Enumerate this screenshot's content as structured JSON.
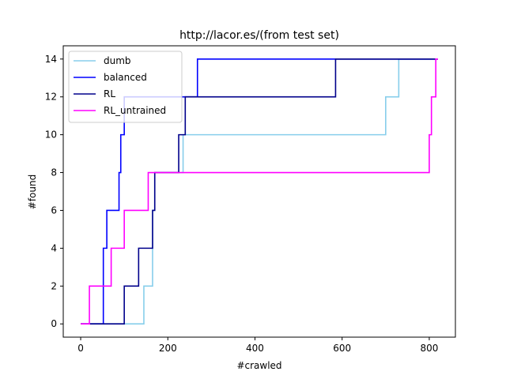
{
  "chart_data": {
    "type": "line",
    "title": "http://lacor.es/(from test set)",
    "xlabel": "#crawled",
    "ylabel": "#found",
    "xlim": [
      -40,
      860
    ],
    "ylim": [
      -0.7,
      14.7
    ],
    "xticks": [
      0,
      200,
      400,
      600,
      800
    ],
    "yticks": [
      0,
      2,
      4,
      6,
      8,
      10,
      12,
      14
    ],
    "grid": false,
    "legend_position": "top-left",
    "series": [
      {
        "name": "dumb",
        "color": "#87ceeb",
        "points": [
          [
            0,
            0
          ],
          [
            145,
            0
          ],
          [
            145,
            2
          ],
          [
            165,
            2
          ],
          [
            165,
            6
          ],
          [
            170,
            6
          ],
          [
            170,
            8
          ],
          [
            235,
            8
          ],
          [
            235,
            10
          ],
          [
            700,
            10
          ],
          [
            700,
            12
          ],
          [
            730,
            12
          ],
          [
            730,
            14
          ],
          [
            820,
            14
          ]
        ]
      },
      {
        "name": "balanced",
        "color": "#0000ff",
        "points": [
          [
            0,
            0
          ],
          [
            52,
            0
          ],
          [
            52,
            4
          ],
          [
            60,
            4
          ],
          [
            60,
            6
          ],
          [
            88,
            6
          ],
          [
            88,
            8
          ],
          [
            92,
            8
          ],
          [
            92,
            10
          ],
          [
            100,
            10
          ],
          [
            100,
            12
          ],
          [
            268,
            12
          ],
          [
            268,
            14
          ],
          [
            820,
            14
          ]
        ]
      },
      {
        "name": "RL",
        "color": "#00008b",
        "points": [
          [
            0,
            0
          ],
          [
            100,
            0
          ],
          [
            100,
            2
          ],
          [
            133,
            2
          ],
          [
            133,
            4
          ],
          [
            165,
            4
          ],
          [
            165,
            6
          ],
          [
            170,
            6
          ],
          [
            170,
            8
          ],
          [
            225,
            8
          ],
          [
            225,
            10
          ],
          [
            240,
            10
          ],
          [
            240,
            12
          ],
          [
            585,
            12
          ],
          [
            585,
            14
          ],
          [
            820,
            14
          ]
        ]
      },
      {
        "name": "RL_untrained",
        "color": "#ff00ff",
        "points": [
          [
            0,
            0
          ],
          [
            20,
            0
          ],
          [
            20,
            2
          ],
          [
            70,
            2
          ],
          [
            70,
            4
          ],
          [
            100,
            4
          ],
          [
            100,
            6
          ],
          [
            155,
            6
          ],
          [
            155,
            8
          ],
          [
            800,
            8
          ],
          [
            800,
            10
          ],
          [
            805,
            10
          ],
          [
            805,
            12
          ],
          [
            815,
            12
          ],
          [
            815,
            14
          ],
          [
            820,
            14
          ]
        ]
      }
    ]
  }
}
